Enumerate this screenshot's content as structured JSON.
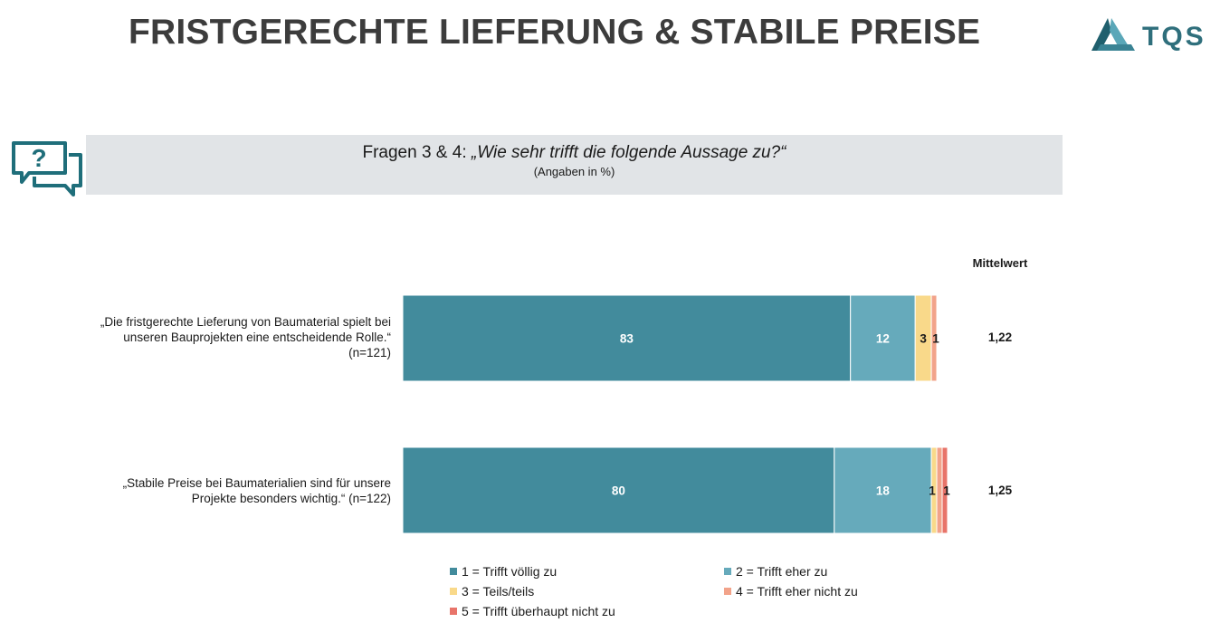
{
  "header": {
    "title": "FRISTGERECHTE LIEFERUNG & STABILE PREISE",
    "logo_text": "TQS"
  },
  "question": {
    "prefix": "Fragen 3 & 4: ",
    "text": "„Wie sehr trifft die folgende Aussage zu?“",
    "note": "(Angaben in %)"
  },
  "chart_data": {
    "type": "bar",
    "orientation": "horizontal",
    "stacked": true,
    "unit": "%",
    "xlim": [
      0,
      100
    ],
    "grid": false,
    "legend_position": "bottom",
    "mean_header": "Mittelwert",
    "categories": [
      "„Die fristgerechte Lieferung von Baumaterial spielt bei unseren Bauprojekten eine entscheidende Rolle.“ (n=121)",
      "„Stabile Preise bei Baumaterialien sind für unsere Projekte besonders wichtig.“ (n=122)"
    ],
    "series": [
      {
        "name": "1 = Trifft völlig zu",
        "color": "#428b9c",
        "values": [
          83,
          80
        ]
      },
      {
        "name": "2 = Trifft eher zu",
        "color": "#66aabb",
        "values": [
          12,
          18
        ]
      },
      {
        "name": "3 = Teils/teils",
        "color": "#f9d98a",
        "values": [
          3,
          1
        ]
      },
      {
        "name": "4 = Trifft eher nicht zu",
        "color": "#f2a38a",
        "values": [
          1,
          1
        ]
      },
      {
        "name": "5 = Trifft überhaupt nicht zu",
        "color": "#e8746a",
        "values": [
          0,
          1
        ]
      }
    ],
    "data_labels": [
      [
        "83",
        "12",
        "3",
        "1",
        ""
      ],
      [
        "80",
        "18",
        "1",
        "",
        "1"
      ]
    ],
    "means": [
      "1,22",
      "1,25"
    ]
  }
}
